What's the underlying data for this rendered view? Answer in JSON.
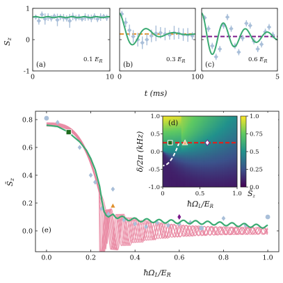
{
  "colors": {
    "green": "#3aaa72",
    "exp": "#a9bfd9",
    "pink": "#e8829e",
    "orange": "#e0902c",
    "purple": "#7a1a8a",
    "darkgreen": "#1f6b1f",
    "red": "#e0201c"
  },
  "chart_data": [
    {
      "id": "a",
      "type": "line",
      "label": "(a)",
      "er_label": "0.1 E_R",
      "xlim": [
        0,
        10
      ],
      "ylim": [
        -1,
        1
      ],
      "xticks": [
        0,
        10
      ],
      "yticks": [
        -1,
        0,
        1
      ],
      "ylabel": "S_z",
      "theory_const": 0.72,
      "exp": {
        "x": [
          0.4,
          0.8,
          1.2,
          1.6,
          2.0,
          2.4,
          2.8,
          3.2,
          3.6,
          4.0,
          4.4,
          4.8,
          5.2,
          5.6,
          6.0,
          6.4,
          6.8,
          7.2,
          7.6,
          8.0,
          8.4,
          8.8,
          9.2,
          9.6
        ],
        "y": [
          0.72,
          0.6,
          0.8,
          0.66,
          0.72,
          0.68,
          0.75,
          0.63,
          0.72,
          0.7,
          0.68,
          0.6,
          0.74,
          0.69,
          0.72,
          0.66,
          0.72,
          0.71,
          0.68,
          0.74,
          0.66,
          0.72,
          0.74,
          0.7
        ],
        "err": [
          0.08,
          0.12,
          0.1,
          0.18,
          0.12,
          0.1,
          0.08,
          0.2,
          0.1,
          0.12,
          0.1,
          0.22,
          0.12,
          0.1,
          0.1,
          0.08,
          0.12,
          0.1,
          0.12,
          0.1,
          0.1,
          0.12,
          0.08,
          0.1
        ]
      }
    },
    {
      "id": "b",
      "type": "line",
      "label": "(b)",
      "er_label": "0.3 E_R",
      "xlim": [
        0,
        10
      ],
      "ylim": [
        -1,
        1
      ],
      "xticks": [
        0,
        10
      ],
      "yticks": [
        -1,
        0,
        1
      ],
      "mean": 0.18,
      "osc": {
        "amp": 0.82,
        "tau": 2.6,
        "period": 3.6
      },
      "exp": {
        "x": [
          0.3,
          0.8,
          1.3,
          1.8,
          2.4,
          3.0,
          3.6,
          4.2,
          4.8,
          5.4,
          6.0,
          6.6,
          7.2,
          7.8,
          8.4,
          9.0,
          9.6
        ],
        "y": [
          0.82,
          0.55,
          0.3,
          0.1,
          0.0,
          -0.1,
          0.0,
          0.12,
          0.2,
          0.22,
          0.18,
          0.15,
          0.22,
          0.2,
          0.16,
          0.15,
          0.12
        ],
        "err": [
          0.1,
          0.15,
          0.18,
          0.2,
          0.22,
          0.2,
          0.18,
          0.2,
          0.25,
          0.18,
          0.2,
          0.15,
          0.22,
          0.18,
          0.2,
          0.22,
          0.12
        ]
      }
    },
    {
      "id": "c",
      "type": "line",
      "label": "(c)",
      "er_label": "0.6 E_R",
      "xlim": [
        0,
        5
      ],
      "ylim": [
        -1,
        1
      ],
      "xticks": [
        0,
        5
      ],
      "yticks": [
        -1,
        0,
        1
      ],
      "mean": 0.1,
      "osc": {
        "amp": 0.72,
        "tau": 2.6,
        "period": 1.45
      },
      "exp": {
        "x": [
          0.2,
          0.45,
          0.7,
          0.95,
          1.2,
          1.45,
          1.7,
          1.95,
          2.2,
          2.45,
          2.7,
          2.95,
          3.2,
          3.45,
          3.7,
          3.95,
          4.2,
          4.45,
          4.7
        ],
        "y": [
          0.7,
          0.35,
          -0.2,
          -0.55,
          -0.3,
          0.45,
          0.72,
          0.35,
          -0.2,
          -0.4,
          0.05,
          0.52,
          0.45,
          -0.05,
          -0.3,
          -0.15,
          0.25,
          0.4,
          0.15
        ],
        "err": [
          0.08,
          0.1,
          0.1,
          0.1,
          0.1,
          0.1,
          0.1,
          0.1,
          0.1,
          0.1,
          0.1,
          0.1,
          0.1,
          0.1,
          0.1,
          0.1,
          0.1,
          0.1,
          0.1
        ]
      }
    },
    {
      "id": "e",
      "type": "line",
      "label": "(e)",
      "xlim": [
        -0.05,
        1.05
      ],
      "ylim": [
        -0.15,
        0.86
      ],
      "xticks": [
        0.0,
        0.2,
        0.4,
        0.6,
        0.8,
        1.0
      ],
      "yticks": [
        0.0,
        0.2,
        0.4,
        0.6,
        0.8
      ],
      "xlabel": "ħΩ_L/E_R",
      "ylabel": "S̄_z",
      "theory": {
        "x": [
          0.0,
          0.05,
          0.1,
          0.12,
          0.15,
          0.18,
          0.2,
          0.22,
          0.24,
          0.25,
          0.26,
          0.27,
          0.28,
          0.3,
          0.32,
          0.35,
          0.4,
          0.5,
          0.6,
          0.7,
          0.8,
          0.9,
          1.0
        ],
        "y": [
          0.76,
          0.75,
          0.71,
          0.68,
          0.64,
          0.58,
          0.52,
          0.44,
          0.32,
          0.22,
          0.14,
          0.11,
          0.1,
          0.12,
          0.1,
          0.09,
          0.08,
          0.07,
          0.065,
          0.06,
          0.05,
          0.04,
          0.03
        ]
      },
      "exp": {
        "x": [
          0.0,
          0.05,
          0.1,
          0.15,
          0.2,
          0.22,
          0.25,
          0.28,
          0.3,
          0.35,
          0.4,
          0.45,
          0.5,
          0.55,
          0.6,
          0.65,
          0.7,
          0.8,
          0.9,
          1.0
        ],
        "y": [
          0.81,
          0.78,
          0.71,
          0.6,
          0.4,
          0.35,
          0.16,
          0.12,
          0.3,
          0.08,
          0.05,
          0.03,
          0.06,
          0.04,
          0.05,
          0.06,
          0.02,
          0.09,
          0.04,
          0.1
        ]
      },
      "markers": [
        {
          "name": "marker-square",
          "x": 0.1,
          "y": 0.71,
          "shape": "square",
          "color": "darkgreen"
        },
        {
          "name": "marker-triangle",
          "x": 0.3,
          "y": 0.18,
          "shape": "triangle",
          "color": "orange"
        },
        {
          "name": "marker-diamond",
          "x": 0.6,
          "y": 0.1,
          "shape": "diamond",
          "color": "purple"
        }
      ]
    },
    {
      "id": "d",
      "type": "heatmap",
      "label": "(d)",
      "xlim": [
        0,
        1
      ],
      "ylim": [
        -1,
        1
      ],
      "xticks": [
        0,
        0.5,
        1
      ],
      "xticklabels": [
        "0",
        "0.5",
        "1.0"
      ],
      "yticks": [
        -1,
        -0.5,
        0,
        0.5,
        1
      ],
      "yticklabels": [
        "-1.0",
        "-0.5",
        "0.0",
        "0.5",
        "1.0"
      ],
      "xlabel": "ħΩ_L/E_R",
      "ylabel": "δ/2π (kHz)",
      "cbar_ticks": [
        0,
        0.25,
        0.5,
        0.75,
        1.0
      ],
      "cbar_ticklabels": [
        "0.0",
        "0.25",
        "0.5",
        "0.75",
        "1.0"
      ],
      "cbar_label": "S̄_z",
      "dashed_y": 0.25,
      "markers": [
        {
          "name": "inset-square",
          "x": 0.1,
          "shape": "square",
          "color": "darkgreen"
        },
        {
          "name": "inset-triangle",
          "x": 0.3,
          "shape": "triangle",
          "color": "orange"
        },
        {
          "name": "inset-diamond",
          "x": 0.6,
          "shape": "diamond",
          "color": "purple"
        }
      ]
    }
  ],
  "shared": {
    "top_xlabel": "t (ms)"
  }
}
